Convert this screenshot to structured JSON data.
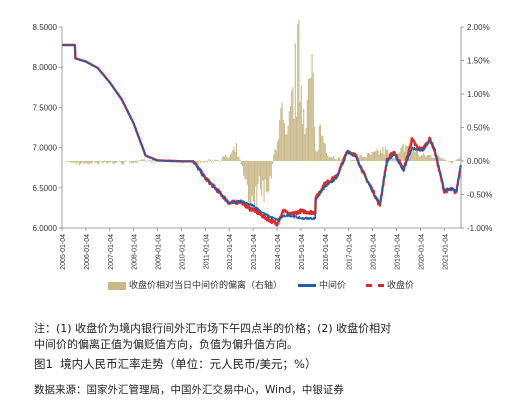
{
  "chart_data": {
    "type": "line",
    "title": "",
    "y_left": {
      "ticks": [
        "6.0000",
        "6.5000",
        "7.0000",
        "7.5000",
        "8.0000",
        "8.5000"
      ],
      "ylim": [
        6.0,
        8.5
      ]
    },
    "y_right": {
      "ticks": [
        "-1.00%",
        "-0.50%",
        "0.00%",
        "0.50%",
        "1.00%",
        "1.50%",
        "2.00%"
      ],
      "ylim": [
        -1.0,
        2.0
      ]
    },
    "x_ticks": [
      "2005-01-04",
      "2006-01-04",
      "2007-01-04",
      "2008-01-04",
      "2009-01-04",
      "2010-01-04",
      "2011-01-04",
      "2012-01-04",
      "2013-01-04",
      "2014-01-04",
      "2015-01-04",
      "2016-01-04",
      "2017-01-04",
      "2018-01-04",
      "2019-01-04",
      "2020-01-04",
      "2021-01-04"
    ],
    "x_range": [
      2005.0,
      2021.7
    ],
    "legend_position": "bottom",
    "series": [
      {
        "name": "中间价",
        "axis": "left",
        "color": "#1f5fa8",
        "x": [
          2005.0,
          2005.54,
          2005.56,
          2006.0,
          2006.5,
          2007.0,
          2007.5,
          2008.0,
          2008.5,
          2009.0,
          2010.0,
          2010.5,
          2011.0,
          2011.5,
          2012.0,
          2012.5,
          2012.85,
          2013.0,
          2013.5,
          2014.0,
          2014.3,
          2014.5,
          2015.0,
          2015.6,
          2015.62,
          2016.0,
          2016.5,
          2016.95,
          2017.3,
          2017.7,
          2018.0,
          2018.3,
          2018.6,
          2018.9,
          2019.3,
          2019.65,
          2019.9,
          2020.1,
          2020.4,
          2020.6,
          2020.9,
          2021.0,
          2021.3,
          2021.5,
          2021.7
        ],
        "y": [
          8.2765,
          8.2765,
          8.11,
          8.07,
          7.99,
          7.81,
          7.6,
          7.3,
          6.9,
          6.84,
          6.83,
          6.83,
          6.62,
          6.47,
          6.31,
          6.33,
          6.29,
          6.28,
          6.17,
          6.1,
          6.15,
          6.16,
          6.12,
          6.12,
          6.35,
          6.51,
          6.62,
          6.95,
          6.89,
          6.64,
          6.45,
          6.3,
          6.82,
          6.92,
          6.71,
          6.99,
          6.98,
          6.96,
          7.09,
          6.98,
          6.6,
          6.47,
          6.49,
          6.46,
          6.78
        ]
      },
      {
        "name": "收盘价",
        "axis": "left",
        "color": "#d92b2b",
        "x": [
          2005.0,
          2005.54,
          2005.56,
          2006.0,
          2006.5,
          2007.0,
          2007.5,
          2008.0,
          2008.5,
          2009.0,
          2010.0,
          2010.5,
          2011.0,
          2011.5,
          2012.0,
          2012.5,
          2012.85,
          2013.0,
          2013.5,
          2014.0,
          2014.3,
          2014.5,
          2015.0,
          2015.6,
          2015.62,
          2016.0,
          2016.5,
          2016.95,
          2017.3,
          2017.7,
          2018.0,
          2018.3,
          2018.6,
          2018.9,
          2019.3,
          2019.65,
          2019.9,
          2020.1,
          2020.4,
          2020.6,
          2020.9,
          2021.0,
          2021.3,
          2021.5,
          2021.7
        ],
        "y": [
          8.2765,
          8.2765,
          8.11,
          8.07,
          7.99,
          7.81,
          7.6,
          7.3,
          6.9,
          6.84,
          6.83,
          6.83,
          6.62,
          6.47,
          6.31,
          6.33,
          6.24,
          6.23,
          6.13,
          6.05,
          6.23,
          6.16,
          6.21,
          6.19,
          6.37,
          6.55,
          6.64,
          6.96,
          6.9,
          6.63,
          6.47,
          6.28,
          6.84,
          6.95,
          6.72,
          7.1,
          6.99,
          6.98,
          7.11,
          6.96,
          6.58,
          6.46,
          6.48,
          6.44,
          6.8
        ]
      },
      {
        "name": "收盘价相对当日中间价的偏离（右轴）",
        "axis": "right",
        "type": "area",
        "color": "#c8b98a",
        "x": [
          2005.0,
          2005.9,
          2006.5,
          2007.5,
          2008.5,
          2009.5,
          2010.5,
          2011.0,
          2011.5,
          2012.0,
          2012.3,
          2012.5,
          2012.7,
          2012.9,
          2013.1,
          2013.4,
          2013.7,
          2014.0,
          2014.2,
          2014.4,
          2014.6,
          2014.8,
          2014.95,
          2015.1,
          2015.4,
          2015.5,
          2015.6,
          2015.8,
          2016.2,
          2016.6,
          2017.0,
          2017.5,
          2018.0,
          2018.5,
          2019.0,
          2019.3,
          2019.6,
          2020.0,
          2020.5,
          2021.0,
          2021.3,
          2021.7
        ],
        "y": [
          0.0,
          -0.05,
          -0.02,
          -0.03,
          0.0,
          0.0,
          -0.02,
          -0.02,
          0.03,
          0.08,
          0.2,
          -0.05,
          -0.3,
          -0.75,
          -0.6,
          -0.55,
          -0.4,
          0.5,
          0.8,
          0.3,
          0.9,
          1.6,
          1.8,
          1.0,
          1.3,
          1.6,
          0.1,
          0.6,
          0.1,
          0.05,
          0.0,
          0.08,
          0.12,
          0.2,
          0.05,
          0.25,
          0.35,
          0.1,
          0.1,
          0.05,
          -0.05,
          0.1
        ]
      }
    ]
  },
  "legend": {
    "items": [
      "收盘价相对当日中间价的偏离（右轴）",
      "中间价",
      "收盘价"
    ]
  },
  "note": {
    "line1": "注：(1) 收盘价为境内银行间外汇市场下午四点半的价格；(2) 收盘价相对",
    "line2": "中间价的偏离正值为偏贬值方向，负值为偏升值方向。"
  },
  "caption": {
    "label": "图1",
    "text": "境内人民币汇率走势（单位：元人民币/美元；%）"
  },
  "source": "数据来源：国家外汇管理局，中国外汇交易中心，Wind，中银证券"
}
